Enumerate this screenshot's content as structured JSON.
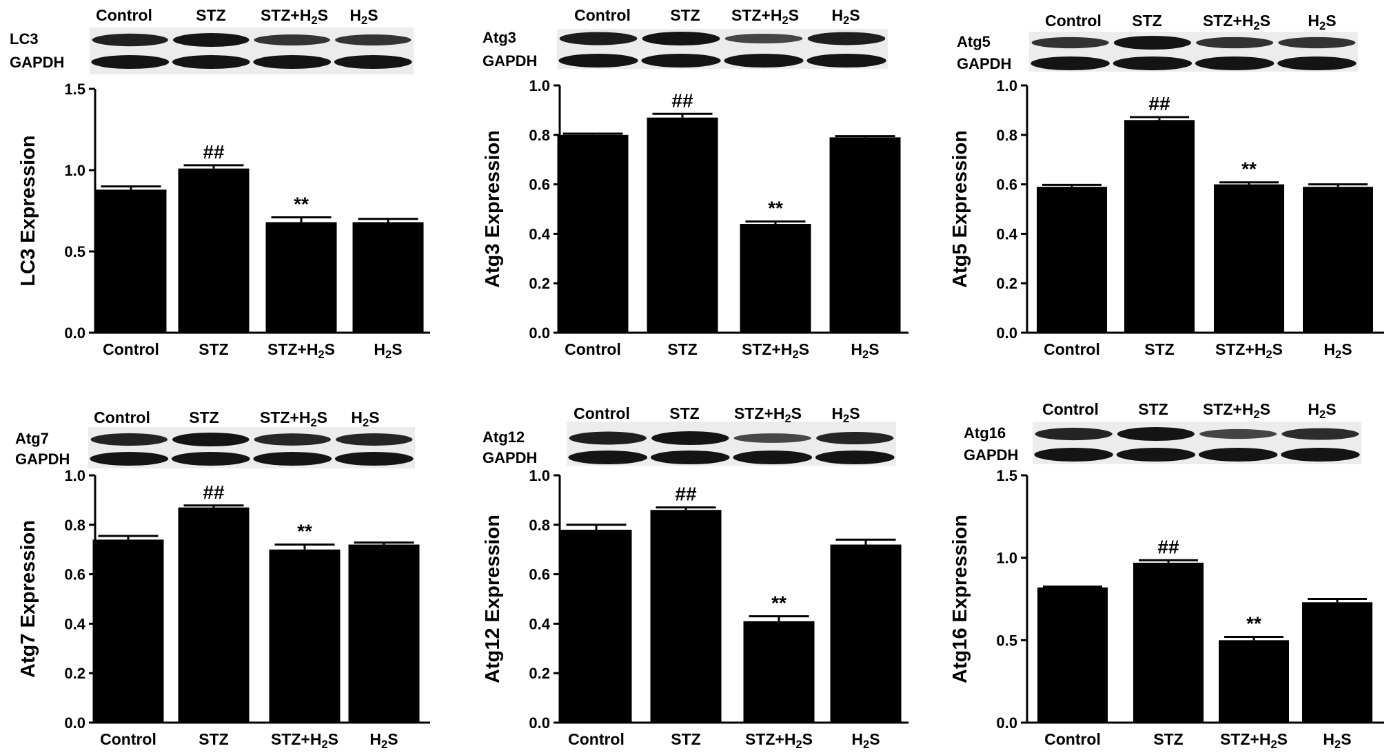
{
  "chart_data": [
    {
      "type": "bar",
      "protein": "LC3",
      "blot_labels": [
        "LC3",
        "GAPDH"
      ],
      "lanes": [
        "Control",
        "STZ",
        "STZ+H2S",
        "H2S"
      ],
      "categories": [
        "Control",
        "STZ",
        "STZ+H2S",
        "H2S"
      ],
      "values": [
        0.88,
        1.01,
        0.68,
        0.68
      ],
      "errors": [
        0.02,
        0.02,
        0.03,
        0.02
      ],
      "significance": [
        "",
        "##",
        "**",
        ""
      ],
      "ylabel": "LC3 Expression",
      "ylim": [
        0,
        1.5
      ],
      "yticks": [
        "0.0",
        "0.5",
        "1.0",
        "1.5"
      ]
    },
    {
      "type": "bar",
      "protein": "Atg3",
      "blot_labels": [
        "Atg3",
        "GAPDH"
      ],
      "lanes": [
        "Control",
        "STZ",
        "STZ+H2S",
        "H2S"
      ],
      "categories": [
        "Control",
        "STZ",
        "STZ+H2S",
        "H2S"
      ],
      "values": [
        0.8,
        0.87,
        0.44,
        0.79
      ],
      "errors": [
        0.005,
        0.015,
        0.01,
        0.005
      ],
      "significance": [
        "",
        "##",
        "**",
        ""
      ],
      "ylabel": "Atg3 Expression",
      "ylim": [
        0,
        1.0
      ],
      "yticks": [
        "0.0",
        "0.2",
        "0.4",
        "0.6",
        "0.8",
        "1.0"
      ]
    },
    {
      "type": "bar",
      "protein": "Atg5",
      "blot_labels": [
        "Atg5",
        "GAPDH"
      ],
      "lanes": [
        "Control",
        "STZ",
        "STZ+H2S",
        "H2S"
      ],
      "categories": [
        "Control",
        "STZ",
        "STZ+H2S",
        "H2S"
      ],
      "values": [
        0.59,
        0.86,
        0.6,
        0.59
      ],
      "errors": [
        0.008,
        0.012,
        0.008,
        0.01
      ],
      "significance": [
        "",
        "##",
        "**",
        ""
      ],
      "ylabel": "Atg5 Expression",
      "ylim": [
        0,
        1.0
      ],
      "yticks": [
        "0.0",
        "0.2",
        "0.4",
        "0.6",
        "0.8",
        "1.0"
      ]
    },
    {
      "type": "bar",
      "protein": "Atg7",
      "blot_labels": [
        "Atg7",
        "GAPDH"
      ],
      "lanes": [
        "Control",
        "STZ",
        "STZ+H2S",
        "H2S"
      ],
      "categories": [
        "Control",
        "STZ",
        "STZ+H2S",
        "H2S"
      ],
      "values": [
        0.74,
        0.87,
        0.7,
        0.72
      ],
      "errors": [
        0.015,
        0.008,
        0.02,
        0.008
      ],
      "significance": [
        "",
        "##",
        "**",
        ""
      ],
      "ylabel": "Atg7 Expression",
      "ylim": [
        0,
        1.0
      ],
      "yticks": [
        "0.0",
        "0.2",
        "0.4",
        "0.6",
        "0.8",
        "1.0"
      ]
    },
    {
      "type": "bar",
      "protein": "Atg12",
      "blot_labels": [
        "Atg12",
        "GAPDH"
      ],
      "lanes": [
        "Control",
        "STZ",
        "STZ+H2S",
        "H2S"
      ],
      "categories": [
        "Control",
        "STZ",
        "STZ+H2S",
        "H2S"
      ],
      "values": [
        0.78,
        0.86,
        0.41,
        0.72
      ],
      "errors": [
        0.02,
        0.01,
        0.02,
        0.02
      ],
      "significance": [
        "",
        "##",
        "**",
        ""
      ],
      "ylabel": "Atg12 Expression",
      "ylim": [
        0,
        1.0
      ],
      "yticks": [
        "0.0",
        "0.2",
        "0.4",
        "0.6",
        "0.8",
        "1.0"
      ]
    },
    {
      "type": "bar",
      "protein": "Atg16",
      "blot_labels": [
        "Atg16",
        "GAPDH"
      ],
      "lanes": [
        "Control",
        "STZ",
        "STZ+H2S",
        "H2S"
      ],
      "categories": [
        "Control",
        "STZ",
        "STZ+H2S",
        "H2S"
      ],
      "values": [
        0.82,
        0.97,
        0.5,
        0.73
      ],
      "errors": [
        0.005,
        0.015,
        0.02,
        0.02
      ],
      "significance": [
        "",
        "##",
        "**",
        ""
      ],
      "ylabel": "Atg16 Expression",
      "ylim": [
        0,
        1.5
      ],
      "yticks": [
        "0.0",
        "0.5",
        "1.0",
        "1.5"
      ]
    }
  ],
  "colors": {
    "bar": "#000000",
    "band": "#141414",
    "blot_background": "#ececec",
    "axis": "#000000"
  }
}
